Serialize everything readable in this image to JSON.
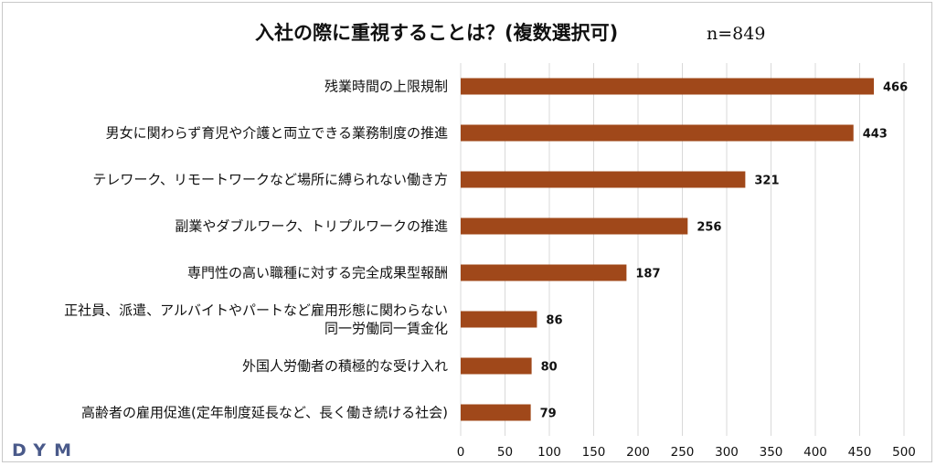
{
  "brand": {
    "logo_text": "DYM",
    "logo_color": "#4a5a8a"
  },
  "chart_data": {
    "type": "bar",
    "orientation": "horizontal",
    "title": "入社の際に重視することは？(複数選択可)",
    "sample_note": "n=849",
    "categories": [
      [
        "残業時間の上限規制"
      ],
      [
        "男女に関わらず育児や介護と両立できる業務制度の推進"
      ],
      [
        "テレワーク、リモートワークなど場所に縛られない働き方"
      ],
      [
        "副業やダブルワーク、トリプルワークの推進"
      ],
      [
        "専門性の高い職種に対する完全成果型報酬"
      ],
      [
        "正社員、派遣、アルバイトやパートなど雇用形態に関わらない",
        "同一労働同一賃金化"
      ],
      [
        "外国人労働者の積極的な受け入れ"
      ],
      [
        "高齢者の雇用促進(定年制度延長など、長く働き続ける社会)"
      ]
    ],
    "values": [
      466,
      443,
      321,
      256,
      187,
      86,
      80,
      79
    ],
    "xlim": [
      0,
      500
    ],
    "xticks": [
      0,
      50,
      100,
      150,
      200,
      250,
      300,
      350,
      400,
      450,
      500
    ],
    "grid": true,
    "legend": "none",
    "bar_color": "#a0481a",
    "grid_color": "#d9d9d9"
  }
}
